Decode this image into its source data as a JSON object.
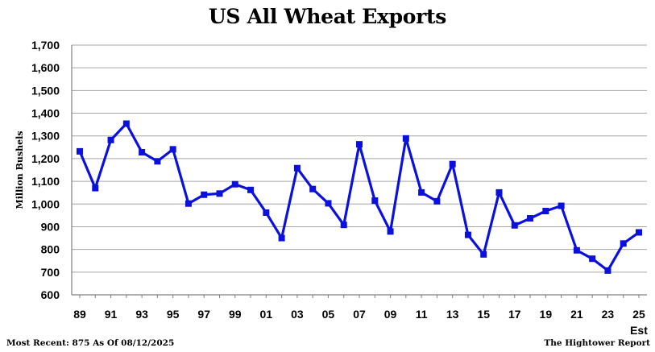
{
  "chart_data": {
    "type": "line",
    "title": "US All Wheat Exports",
    "ylabel": "Million Bushels",
    "xlabel": "",
    "ylim": [
      600,
      1700
    ],
    "yticks": [
      "600",
      "700",
      "800",
      "900",
      "1,000",
      "1,100",
      "1,200",
      "1,300",
      "1,400",
      "1,500",
      "1,600",
      "1,700"
    ],
    "ytick_values": [
      600,
      700,
      800,
      900,
      1000,
      1100,
      1200,
      1300,
      1400,
      1500,
      1600,
      1700
    ],
    "categories": [
      "89",
      "90",
      "91",
      "92",
      "93",
      "94",
      "95",
      "96",
      "97",
      "98",
      "99",
      "00",
      "01",
      "02",
      "03",
      "04",
      "05",
      "06",
      "07",
      "08",
      "09",
      "10",
      "11",
      "12",
      "13",
      "14",
      "15",
      "16",
      "17",
      "18",
      "19",
      "20",
      "21",
      "22",
      "23",
      "24",
      "25"
    ],
    "xtick_labels": [
      "89",
      "91",
      "93",
      "95",
      "97",
      "99",
      "01",
      "03",
      "05",
      "07",
      "09",
      "11",
      "13",
      "15",
      "17",
      "19",
      "21",
      "23",
      "25"
    ],
    "xtick_extra": "Est",
    "grid": true,
    "series": [
      {
        "values": [
          1232,
          1070,
          1282,
          1354,
          1228,
          1188,
          1241,
          1002,
          1041,
          1046,
          1087,
          1062,
          962,
          850,
          1158,
          1066,
          1003,
          908,
          1263,
          1015,
          879,
          1289,
          1051,
          1012,
          1176,
          864,
          778,
          1051,
          906,
          937,
          969,
          992,
          796,
          759,
          707,
          826,
          875
        ],
        "color": "#0a10dd"
      }
    ]
  },
  "footer": {
    "left": "Most Recent: 875 As Of 08/12/2025",
    "right": "The Hightower Report"
  },
  "colors": {
    "line": "#0a10dd",
    "grid": "#a6a6a6",
    "axis": "#7f7f7f"
  }
}
